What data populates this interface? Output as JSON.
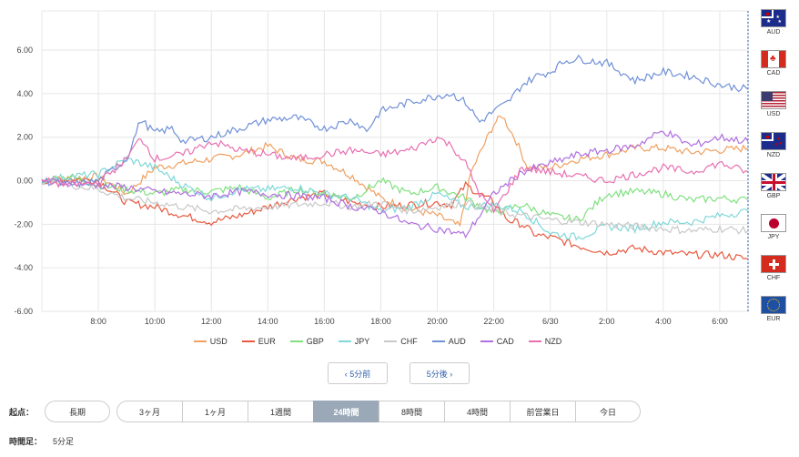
{
  "chart_data": {
    "type": "line",
    "y_ticks": [
      "6.00",
      "4.00",
      "2.00",
      "0.00",
      "-2.00",
      "-4.00",
      "-6.00"
    ],
    "ylim": [
      -6,
      7.8
    ],
    "x_ticks": [
      "8:00",
      "10:00",
      "12:00",
      "14:00",
      "16:00",
      "18:00",
      "20:00",
      "22:00",
      "6/30",
      "2:00",
      "4:00",
      "6:00"
    ],
    "x_tick_hours": [
      2,
      4,
      6,
      8,
      10,
      12,
      14,
      16,
      18,
      20,
      22,
      24
    ],
    "xlim": [
      0,
      25
    ],
    "grid": true,
    "legend_position": "bottom",
    "series": [
      {
        "name": "USD",
        "color": "#f0a060",
        "points": [
          [
            0,
            0
          ],
          [
            1,
            0.1
          ],
          [
            2,
            0.2
          ],
          [
            3,
            -0.6
          ],
          [
            4,
            0.6
          ],
          [
            5,
            0.8
          ],
          [
            6,
            1.0
          ],
          [
            7,
            1.2
          ],
          [
            8,
            1.6
          ],
          [
            9,
            1.0
          ],
          [
            10,
            0.9
          ],
          [
            11,
            0.2
          ],
          [
            12,
            -0.8
          ],
          [
            13,
            -1.3
          ],
          [
            14,
            -1.6
          ],
          [
            14.8,
            -2.1
          ],
          [
            15.2,
            0.4
          ],
          [
            16,
            2.6
          ],
          [
            16.3,
            3.0
          ],
          [
            16.8,
            1.8
          ],
          [
            17.2,
            0.6
          ],
          [
            18,
            0.6
          ],
          [
            19,
            1.0
          ],
          [
            20,
            1.2
          ],
          [
            21,
            1.5
          ],
          [
            22,
            1.5
          ],
          [
            23,
            1.3
          ],
          [
            24,
            1.4
          ],
          [
            25,
            1.5
          ]
        ]
      },
      {
        "name": "EUR",
        "color": "#e85a40",
        "points": [
          [
            0,
            0
          ],
          [
            1,
            0.1
          ],
          [
            2,
            0.0
          ],
          [
            3,
            -1.0
          ],
          [
            4,
            -1.2
          ],
          [
            5,
            -1.6
          ],
          [
            6,
            -1.9
          ],
          [
            7,
            -1.6
          ],
          [
            8,
            -1.2
          ],
          [
            9,
            -0.8
          ],
          [
            10,
            -0.6
          ],
          [
            11,
            -1.0
          ],
          [
            12,
            -1.2
          ],
          [
            13,
            -1.1
          ],
          [
            14,
            -1.0
          ],
          [
            14.5,
            -1.1
          ],
          [
            15,
            -0.2
          ],
          [
            16,
            -1.0
          ],
          [
            16.5,
            -1.8
          ],
          [
            17,
            -2.0
          ],
          [
            17.5,
            -2.5
          ],
          [
            18,
            -2.6
          ],
          [
            19,
            -3.0
          ],
          [
            20,
            -3.3
          ],
          [
            21,
            -3.1
          ],
          [
            22,
            -3.3
          ],
          [
            23,
            -3.4
          ],
          [
            24,
            -3.4
          ],
          [
            25,
            -3.6
          ]
        ]
      },
      {
        "name": "GBP",
        "color": "#80e080",
        "points": [
          [
            0,
            0
          ],
          [
            1,
            0.2
          ],
          [
            2,
            -0.2
          ],
          [
            3,
            -0.4
          ],
          [
            4,
            -0.6
          ],
          [
            5,
            -0.4
          ],
          [
            6,
            -0.5
          ],
          [
            7,
            -0.3
          ],
          [
            8,
            -0.8
          ],
          [
            9,
            -0.4
          ],
          [
            10,
            -0.6
          ],
          [
            11,
            -0.8
          ],
          [
            12,
            0.0
          ],
          [
            13,
            -0.6
          ],
          [
            14,
            -0.3
          ],
          [
            15,
            -0.8
          ],
          [
            16,
            -1.5
          ],
          [
            17,
            -1.1
          ],
          [
            18,
            -1.6
          ],
          [
            19,
            -1.8
          ],
          [
            20,
            -0.6
          ],
          [
            21,
            -0.5
          ],
          [
            22,
            -0.6
          ],
          [
            23,
            -0.9
          ],
          [
            24,
            -0.8
          ],
          [
            25,
            -0.9
          ]
        ]
      },
      {
        "name": "JPY",
        "color": "#80d8d8",
        "points": [
          [
            0,
            0
          ],
          [
            1,
            0.2
          ],
          [
            2,
            0.3
          ],
          [
            3,
            1.0
          ],
          [
            4,
            0.6
          ],
          [
            5,
            -0.2
          ],
          [
            6,
            -0.8
          ],
          [
            7,
            -0.4
          ],
          [
            8,
            -0.4
          ],
          [
            9,
            -0.3
          ],
          [
            10,
            -0.6
          ],
          [
            11,
            -0.8
          ],
          [
            12,
            -1.4
          ],
          [
            13,
            -1.2
          ],
          [
            14,
            -0.6
          ],
          [
            15,
            -1.2
          ],
          [
            16,
            -1.1
          ],
          [
            17,
            -1.4
          ],
          [
            18,
            -2.4
          ],
          [
            19,
            -2.6
          ],
          [
            20,
            -2.1
          ],
          [
            21,
            -2.2
          ],
          [
            22,
            -1.9
          ],
          [
            23,
            -1.9
          ],
          [
            24,
            -1.6
          ],
          [
            25,
            -1.4
          ]
        ]
      },
      {
        "name": "CHF",
        "color": "#c8c8c8",
        "points": [
          [
            0,
            0
          ],
          [
            1,
            -0.2
          ],
          [
            2,
            -0.4
          ],
          [
            3,
            -0.8
          ],
          [
            4,
            -1.0
          ],
          [
            5,
            -1.2
          ],
          [
            6,
            -1.4
          ],
          [
            7,
            -1.3
          ],
          [
            8,
            -1.2
          ],
          [
            9,
            -1.1
          ],
          [
            10,
            -1.0
          ],
          [
            11,
            -1.2
          ],
          [
            12,
            -1.0
          ],
          [
            13,
            -1.4
          ],
          [
            14,
            -1.2
          ],
          [
            15,
            -1.0
          ],
          [
            16,
            -1.4
          ],
          [
            17,
            -1.6
          ],
          [
            18,
            -1.8
          ],
          [
            19,
            -1.9
          ],
          [
            20,
            -2.0
          ],
          [
            21,
            -2.1
          ],
          [
            22,
            -2.2
          ],
          [
            23,
            -2.3
          ],
          [
            24,
            -2.2
          ],
          [
            25,
            -2.3
          ]
        ]
      },
      {
        "name": "AUD",
        "color": "#7090d8",
        "points": [
          [
            0,
            0
          ],
          [
            1,
            -0.2
          ],
          [
            2,
            0.0
          ],
          [
            3,
            1.0
          ],
          [
            3.5,
            2.8
          ],
          [
            4,
            2.2
          ],
          [
            4.6,
            2.4
          ],
          [
            5,
            1.8
          ],
          [
            6,
            2.0
          ],
          [
            7,
            2.4
          ],
          [
            8,
            2.8
          ],
          [
            9,
            2.9
          ],
          [
            10,
            2.4
          ],
          [
            11,
            2.8
          ],
          [
            11.5,
            2.3
          ],
          [
            12,
            3.2
          ],
          [
            13,
            3.6
          ],
          [
            14,
            3.9
          ],
          [
            14.5,
            4.0
          ],
          [
            15,
            3.6
          ],
          [
            15.5,
            2.7
          ],
          [
            16,
            3.2
          ],
          [
            16.5,
            3.6
          ],
          [
            17,
            4.4
          ],
          [
            17.5,
            4.8
          ],
          [
            18,
            5.0
          ],
          [
            18.5,
            5.5
          ],
          [
            19,
            5.6
          ],
          [
            20,
            5.4
          ],
          [
            21,
            4.6
          ],
          [
            22,
            5.0
          ],
          [
            23,
            4.8
          ],
          [
            24,
            4.4
          ],
          [
            25,
            4.2
          ]
        ]
      },
      {
        "name": "CAD",
        "color": "#b070e0",
        "points": [
          [
            0,
            0
          ],
          [
            1,
            -0.1
          ],
          [
            2,
            -0.2
          ],
          [
            3,
            -0.3
          ],
          [
            4,
            -0.5
          ],
          [
            5,
            -0.6
          ],
          [
            6,
            -0.7
          ],
          [
            7,
            -0.5
          ],
          [
            8,
            -0.6
          ],
          [
            9,
            -0.7
          ],
          [
            10,
            -0.8
          ],
          [
            11,
            -1.2
          ],
          [
            12,
            -1.4
          ],
          [
            13,
            -2.0
          ],
          [
            14,
            -2.2
          ],
          [
            15,
            -2.5
          ],
          [
            15.5,
            -1.6
          ],
          [
            16,
            -0.6
          ],
          [
            17,
            0.4
          ],
          [
            18,
            0.8
          ],
          [
            19,
            1.2
          ],
          [
            20,
            1.4
          ],
          [
            21,
            1.6
          ],
          [
            22,
            2.3
          ],
          [
            23,
            1.6
          ],
          [
            24,
            2.0
          ],
          [
            25,
            1.8
          ]
        ]
      },
      {
        "name": "NZD",
        "color": "#e870b0",
        "points": [
          [
            0,
            0
          ],
          [
            1,
            -0.2
          ],
          [
            2,
            -0.1
          ],
          [
            3,
            1.0
          ],
          [
            3.5,
            2.0
          ],
          [
            4,
            1.0
          ],
          [
            5,
            1.2
          ],
          [
            6,
            1.8
          ],
          [
            7,
            1.4
          ],
          [
            8,
            1.2
          ],
          [
            9,
            1.0
          ],
          [
            10,
            1.2
          ],
          [
            11,
            1.4
          ],
          [
            12,
            1.2
          ],
          [
            13,
            1.4
          ],
          [
            14,
            2.0
          ],
          [
            14.5,
            1.6
          ],
          [
            15,
            0.8
          ],
          [
            15.5,
            -0.6
          ],
          [
            16,
            -1.4
          ],
          [
            17,
            0.6
          ],
          [
            18,
            0.4
          ],
          [
            19,
            0.2
          ],
          [
            20,
            0.0
          ],
          [
            21,
            0.3
          ],
          [
            22,
            0.6
          ],
          [
            23,
            0.4
          ],
          [
            24,
            0.8
          ],
          [
            25,
            0.4
          ]
        ]
      }
    ]
  },
  "legend": [
    "USD",
    "EUR",
    "GBP",
    "JPY",
    "CHF",
    "AUD",
    "CAD",
    "NZD"
  ],
  "flags": [
    {
      "code": "AUD",
      "icon": "australia-flag"
    },
    {
      "code": "CAD",
      "icon": "canada-flag"
    },
    {
      "code": "USD",
      "icon": "usa-flag"
    },
    {
      "code": "NZD",
      "icon": "new-zealand-flag"
    },
    {
      "code": "GBP",
      "icon": "uk-flag"
    },
    {
      "code": "JPY",
      "icon": "japan-flag"
    },
    {
      "code": "CHF",
      "icon": "switzerland-flag"
    },
    {
      "code": "EUR",
      "icon": "eu-flag"
    }
  ],
  "nav": {
    "prev": "‹ 5分前",
    "next": "5分後 ›"
  },
  "start": {
    "label": "起点：",
    "long": "長期",
    "options": [
      "3ヶ月",
      "1ヶ月",
      "1週間",
      "24時間",
      "8時間",
      "4時間",
      "前営業日",
      "今日"
    ],
    "active": "24時間"
  },
  "timeframe": {
    "label": "時間足：",
    "value": "5分足"
  }
}
